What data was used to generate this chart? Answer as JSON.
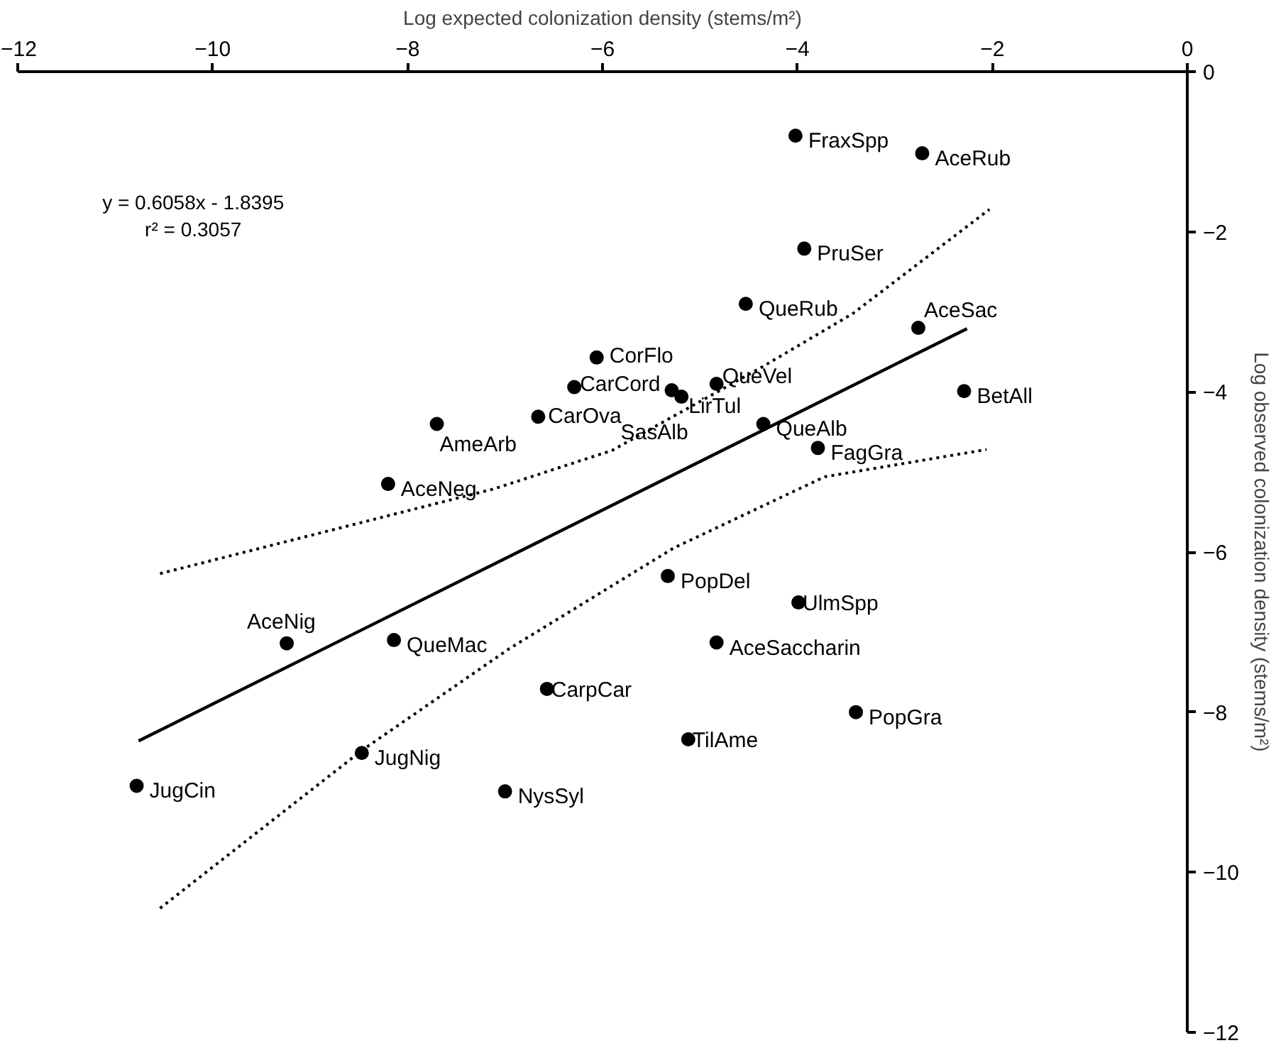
{
  "chart_data": {
    "type": "scatter",
    "xlabel": "Log expected colonization density (stems/m²)",
    "ylabel": "Log observed colonization density (stems/m²)",
    "xlim": [
      -12,
      0
    ],
    "ylim": [
      -12,
      0
    ],
    "xticks": [
      -12,
      -10,
      -8,
      -6,
      -4,
      -2,
      0
    ],
    "yticks": [
      0,
      -2,
      -4,
      -6,
      -8,
      -10,
      -12
    ],
    "grid": false,
    "series": [
      {
        "color": "#000000",
        "marker": "circle",
        "x": [
          -4.02,
          -2.72,
          -3.93,
          -4.53,
          -2.76,
          -6.06,
          -6.29,
          -5.29,
          -5.19,
          -4.83,
          -2.29,
          -4.35,
          -3.79,
          -7.7,
          -6.66,
          -8.2,
          -9.24,
          -8.14,
          -8.47,
          -10.78,
          -7.0,
          -6.57,
          -5.33,
          -3.99,
          -4.83,
          -3.4,
          -5.12
        ],
        "values": [
          -0.8,
          -1.02,
          -2.21,
          -2.9,
          -3.2,
          -3.57,
          -3.94,
          -3.98,
          -4.06,
          -3.9,
          -3.99,
          -4.4,
          -4.7,
          -4.4,
          -4.31,
          -5.15,
          -7.14,
          -7.1,
          -8.51,
          -8.92,
          -8.99,
          -7.71,
          -6.3,
          -6.63,
          -7.13,
          -8.0,
          -8.34
        ]
      },
      {
        "type": "line",
        "color": "#000000",
        "line_style": "solid",
        "x": [
          -10.76,
          -2.26
        ],
        "values": [
          -8.36,
          -3.21
        ]
      },
      {
        "type": "line",
        "color": "#000000",
        "line_style": "dotted",
        "x": [
          -10.54,
          -7.11,
          -5.9,
          -4.35,
          -3.43,
          -2.03
        ],
        "values": [
          -6.27,
          -5.21,
          -4.73,
          -3.68,
          -3.02,
          -1.72
        ]
      },
      {
        "type": "line",
        "color": "#000000",
        "line_style": "dotted",
        "x": [
          -10.54,
          -8.46,
          -6.96,
          -5.27,
          -3.72,
          -2.06
        ],
        "values": [
          -10.45,
          -8.47,
          -7.21,
          -5.95,
          -5.06,
          -4.72
        ]
      }
    ],
    "annotations": [
      "y = 0.6058x - 1.8395\nr² = 0.3057",
      {
        "text": "FraxSpp",
        "x": -4.02,
        "y": -0.8
      },
      {
        "text": "AceRub",
        "x": -2.72,
        "y": -1.02
      },
      {
        "text": "PruSer",
        "x": -3.93,
        "y": -2.21
      },
      {
        "text": "QueRub",
        "x": -4.53,
        "y": -2.9
      },
      {
        "text": "AceSac",
        "x": -2.76,
        "y": -3.2
      },
      {
        "text": "CorFlo",
        "x": -6.06,
        "y": -3.57
      },
      {
        "text": "CarCord",
        "x": -6.29,
        "y": -3.94
      },
      {
        "text": "SasAlb",
        "x": -5.29,
        "y": -3.98
      },
      {
        "text": "LirTul",
        "x": -5.19,
        "y": -4.06
      },
      {
        "text": "QueVel",
        "x": -4.83,
        "y": -3.9
      },
      {
        "text": "BetAll",
        "x": -2.29,
        "y": -3.99
      },
      {
        "text": "QueAlb",
        "x": -4.35,
        "y": -4.4
      },
      {
        "text": "FagGra",
        "x": -3.79,
        "y": -4.7
      },
      {
        "text": "AmeArb",
        "x": -7.7,
        "y": -4.4
      },
      {
        "text": "CarOva",
        "x": -6.66,
        "y": -4.31
      },
      {
        "text": "AceNeg",
        "x": -8.2,
        "y": -5.15
      },
      {
        "text": "AceNig",
        "x": -9.24,
        "y": -7.14
      },
      {
        "text": "QueMac",
        "x": -8.14,
        "y": -7.1
      },
      {
        "text": "JugNig",
        "x": -8.47,
        "y": -8.51
      },
      {
        "text": "JugCin",
        "x": -10.78,
        "y": -8.92
      },
      {
        "text": "NysSyl",
        "x": -7.0,
        "y": -8.99
      },
      {
        "text": "CarpCar",
        "x": -6.57,
        "y": -7.71
      },
      {
        "text": "PopDel",
        "x": -5.33,
        "y": -6.3
      },
      {
        "text": "UlmSpp",
        "x": -3.99,
        "y": -6.63
      },
      {
        "text": "AceSaccharin",
        "x": -4.83,
        "y": -7.13
      },
      {
        "text": "PopGra",
        "x": -3.4,
        "y": -8.0
      },
      {
        "text": "TilAme",
        "x": -5.12,
        "y": -8.34
      }
    ]
  }
}
